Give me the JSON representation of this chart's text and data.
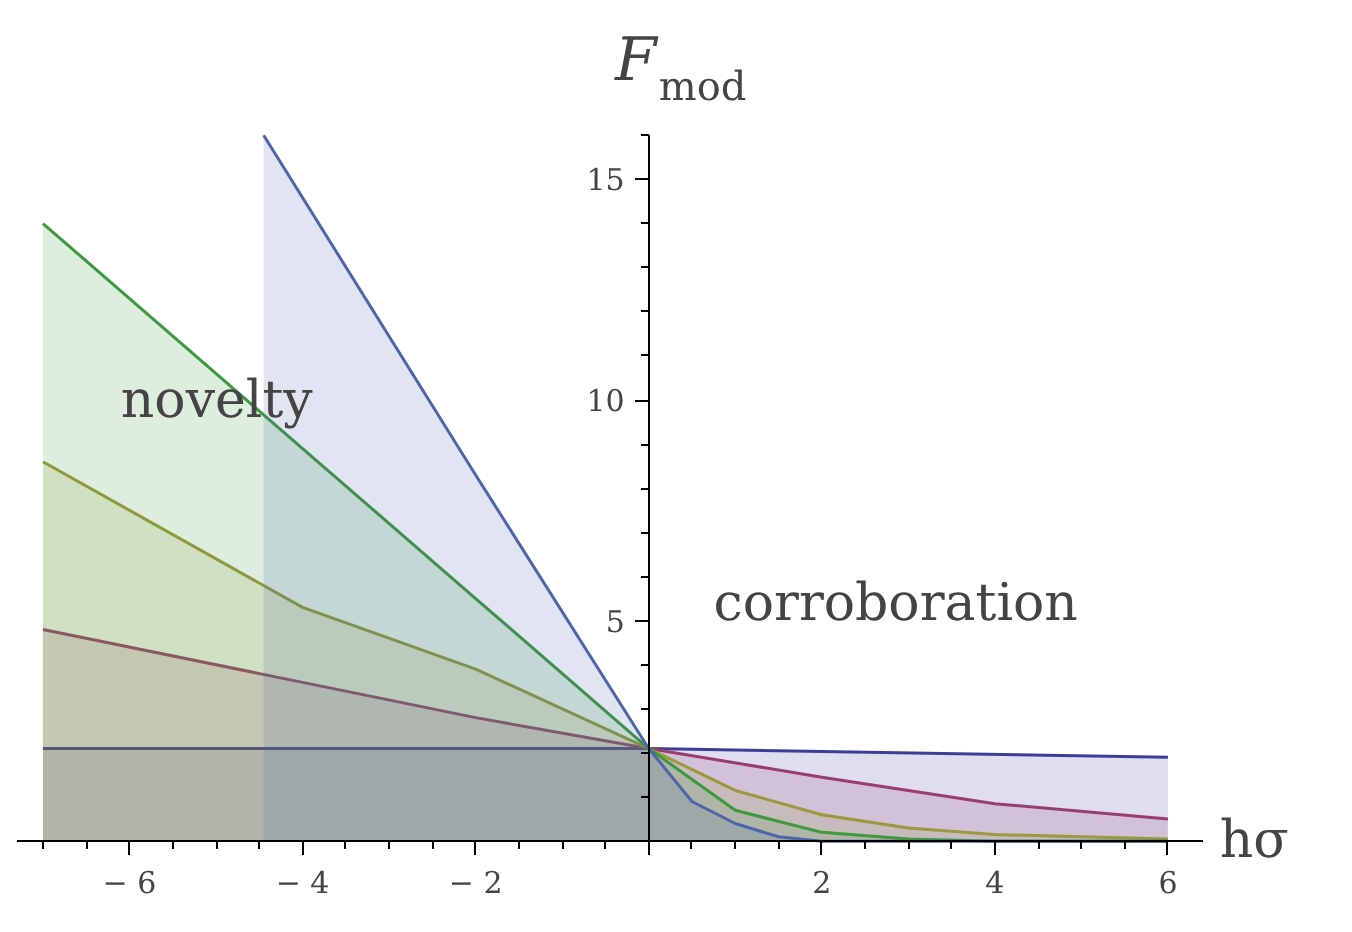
{
  "chart_data": {
    "type": "area",
    "xlabel": "hσ",
    "ylabel": "F$_{mod}$",
    "annotations": [
      "novelty",
      "corroboration"
    ],
    "series": [
      {
        "color": "#3d3d99",
        "x": [
          -7,
          0,
          6
        ],
        "values": [
          2.1,
          2.1,
          1.9
        ]
      },
      {
        "color": "#993d70",
        "x": [
          -7,
          -4,
          -2,
          0,
          2,
          4,
          6
        ],
        "values": [
          4.8,
          3.6,
          2.8,
          2.1,
          1.45,
          0.85,
          0.5
        ]
      },
      {
        "color": "#9a9a3d",
        "x": [
          -7,
          -4,
          -2,
          0,
          1,
          2,
          3,
          4,
          6
        ],
        "values": [
          8.6,
          5.3,
          3.9,
          2.1,
          1.15,
          0.6,
          0.3,
          0.15,
          0.05
        ]
      },
      {
        "color": "#3d993d",
        "x": [
          -7,
          -4,
          -2,
          0,
          1,
          2,
          3,
          4,
          6
        ],
        "values": [
          14,
          8.9,
          5.5,
          2.1,
          0.7,
          0.2,
          0.05,
          0,
          0
        ]
      },
      {
        "color": "#4d66aa",
        "x": [
          -4.45,
          -2,
          0,
          0.5,
          1,
          1.5,
          2,
          6
        ],
        "values": [
          16,
          8.3,
          2.1,
          0.9,
          0.4,
          0.1,
          0,
          0
        ]
      }
    ],
    "xlim": [
      -7.3,
      6.4
    ],
    "ylim": [
      -0.3,
      16
    ],
    "xticks": [
      {
        "value": -6,
        "label": "− 6"
      },
      {
        "value": -4,
        "label": "− 4"
      },
      {
        "value": -2,
        "label": "− 2"
      },
      2,
      4,
      6
    ],
    "yticks": [
      {
        "value": 5,
        "label": "5"
      },
      {
        "value": 10,
        "label": "10"
      },
      {
        "value": 15,
        "label": "15"
      }
    ],
    "grid": false
  }
}
